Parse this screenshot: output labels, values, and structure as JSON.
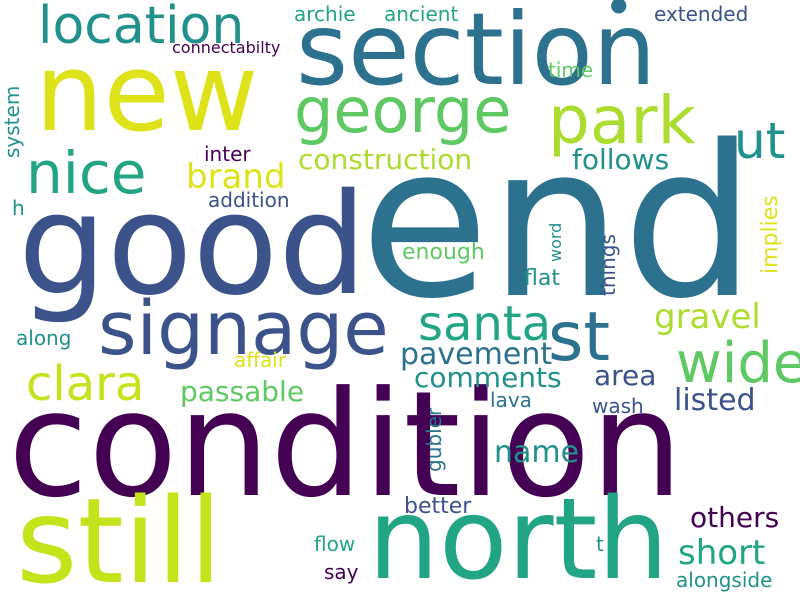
{
  "words": {
    "end": "end",
    "condition": "condition",
    "good": "good",
    "new": "new",
    "section": "section",
    "still": "still",
    "north": "north",
    "signage": "signage",
    "location": "location",
    "george": "george",
    "park": "park",
    "nice": "nice",
    "st": "st",
    "ut": "ut",
    "santa": "santa",
    "clara": "clara",
    "wide": "wide",
    "pavement": "pavement",
    "brand": "brand",
    "construction": "construction",
    "follows": "follows",
    "gravel": "gravel",
    "comments": "comments",
    "passable": "passable",
    "area": "area",
    "listed": "listed",
    "name": "name",
    "short": "short",
    "others": "others",
    "archie": "archie",
    "ancient": "ancient",
    "extended": "extended",
    "connectabilty": "connectabilty",
    "time": "time",
    "system": "system",
    "inter": "inter",
    "addition": "addition",
    "h": "h",
    "enough": "enough",
    "word": "word",
    "things": "things",
    "implies": "implies",
    "flat": "flat",
    "along": "along",
    "affair": "affair",
    "lava": "lava",
    "wash": "wash",
    "gubler": "gubler",
    "better": "better",
    "flow": "flow",
    "say": "say",
    "t": "t",
    "alongside": "alongside"
  },
  "colors": {
    "dark_purple": "#440154",
    "indigo": "#3b528b",
    "blue_teal": "#2c728e",
    "teal": "#21918c",
    "green_teal": "#28ae80",
    "green": "#5ec962",
    "yellow_green": "#addc30",
    "yellow": "#dde318",
    "background": "#ffffff"
  }
}
